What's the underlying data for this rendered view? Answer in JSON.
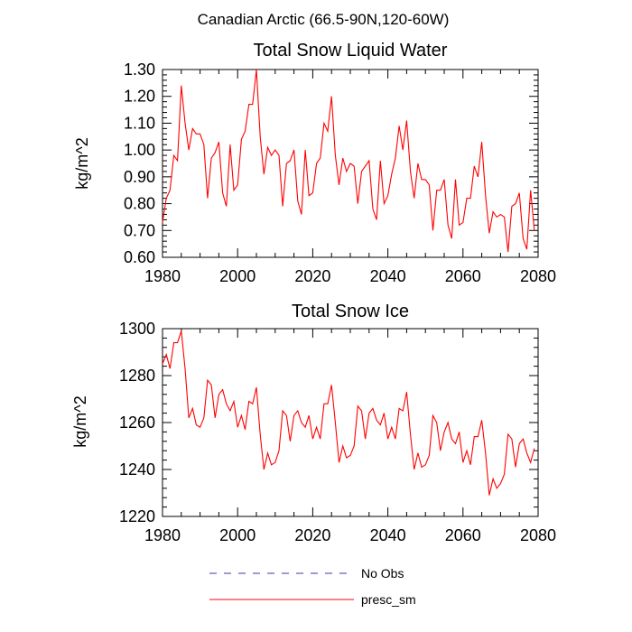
{
  "figure": {
    "suptitle": "Canadian Arctic (66.5-90N,120-60W)",
    "colors": {
      "series": "#ff0000",
      "no_obs": "#3a3aa8",
      "axis": "#000000"
    }
  },
  "legend": {
    "items": [
      {
        "label": "No Obs",
        "style": "dashed",
        "color": "#3a3aa8"
      },
      {
        "label": "presc_sm",
        "style": "solid",
        "color": "#ff0000"
      }
    ]
  },
  "chart_data": [
    {
      "type": "line",
      "title": "Total Snow Liquid Water",
      "xlabel": "",
      "ylabel": "kg/m^2",
      "xlim": [
        1980,
        2080
      ],
      "ylim": [
        0.6,
        1.3
      ],
      "xticks": [
        1980,
        2000,
        2020,
        2040,
        2060,
        2080
      ],
      "yticks": [
        0.6,
        0.7,
        0.8,
        0.9,
        1.0,
        1.1,
        1.2,
        1.3
      ],
      "ytick_labels": [
        "0.60",
        "0.70",
        "0.80",
        "0.90",
        "1.00",
        "1.10",
        "1.20",
        "1.30"
      ],
      "x_start": 1980,
      "series": [
        {
          "name": "presc_sm",
          "values": [
            0.73,
            0.82,
            0.85,
            0.98,
            0.96,
            1.24,
            1.1,
            1.0,
            1.08,
            1.06,
            1.06,
            1.02,
            0.82,
            0.97,
            0.99,
            1.03,
            0.84,
            0.79,
            1.02,
            0.85,
            0.87,
            1.04,
            1.07,
            1.17,
            1.17,
            1.3,
            1.05,
            0.91,
            1.01,
            0.98,
            1.0,
            0.98,
            0.79,
            0.95,
            0.96,
            1.0,
            0.81,
            0.76,
            1.0,
            0.83,
            0.84,
            0.95,
            0.97,
            1.1,
            1.07,
            1.2,
            0.98,
            0.87,
            0.97,
            0.92,
            0.95,
            0.94,
            0.8,
            0.92,
            0.94,
            0.96,
            0.78,
            0.74,
            0.96,
            0.8,
            0.83,
            0.91,
            0.97,
            1.09,
            1.0,
            1.11,
            0.92,
            0.82,
            0.95,
            0.89,
            0.89,
            0.87,
            0.7,
            0.85,
            0.85,
            0.89,
            0.72,
            0.67,
            0.89,
            0.72,
            0.73,
            0.82,
            0.82,
            0.94,
            0.9,
            1.03,
            0.83,
            0.69,
            0.77,
            0.75,
            0.76,
            0.75,
            0.62,
            0.79,
            0.8,
            0.84,
            0.67,
            0.63,
            0.85,
            0.7
          ]
        }
      ],
      "grid": false
    },
    {
      "type": "line",
      "title": "Total Snow Ice",
      "xlabel": "",
      "ylabel": "kg/m^2",
      "xlim": [
        1980,
        2080
      ],
      "ylim": [
        1220,
        1300
      ],
      "xticks": [
        1980,
        2000,
        2020,
        2040,
        2060,
        2080
      ],
      "yticks": [
        1220,
        1240,
        1260,
        1280,
        1300
      ],
      "ytick_labels": [
        "1220",
        "1240",
        "1260",
        "1280",
        "1300"
      ],
      "x_start": 1980,
      "series": [
        {
          "name": "presc_sm",
          "values": [
            1285,
            1289,
            1283,
            1294,
            1294,
            1299,
            1283,
            1262,
            1266,
            1259,
            1258,
            1262,
            1278,
            1276,
            1262,
            1272,
            1274,
            1268,
            1265,
            1269,
            1258,
            1263,
            1257,
            1269,
            1268,
            1275,
            1255,
            1240,
            1247,
            1242,
            1243,
            1248,
            1265,
            1263,
            1252,
            1263,
            1265,
            1260,
            1258,
            1263,
            1253,
            1258,
            1253,
            1268,
            1268,
            1276,
            1260,
            1243,
            1250,
            1245,
            1246,
            1250,
            1267,
            1265,
            1253,
            1264,
            1266,
            1261,
            1259,
            1264,
            1253,
            1258,
            1253,
            1266,
            1265,
            1273,
            1255,
            1240,
            1247,
            1241,
            1242,
            1246,
            1263,
            1260,
            1248,
            1256,
            1260,
            1253,
            1251,
            1256,
            1243,
            1248,
            1242,
            1254,
            1254,
            1261,
            1247,
            1229,
            1236,
            1232,
            1234,
            1238,
            1255,
            1253,
            1241,
            1251,
            1253,
            1247,
            1243,
            1249
          ]
        }
      ],
      "grid": false
    }
  ]
}
